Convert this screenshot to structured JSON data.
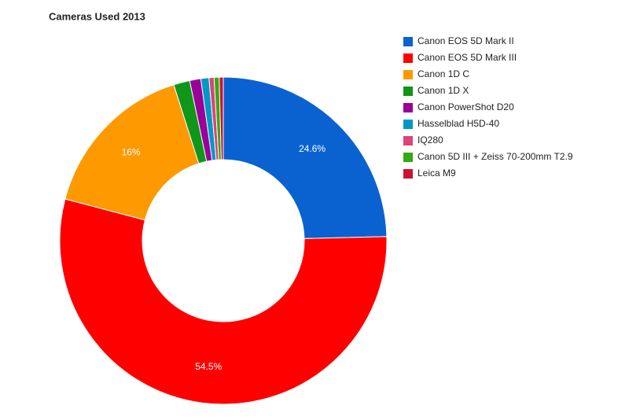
{
  "chart_data": {
    "type": "donut",
    "title": "Cameras Used 2013",
    "categories": [
      "Canon EOS 5D Mark II",
      "Canon EOS 5D Mark III",
      "Canon 1D C",
      "Canon 1D X",
      "Canon PowerShot D20",
      "Hasselblad H5D-40",
      "IQ280",
      "Canon 5D III + Zeiss 70-200mm T2.9",
      "Leica M9"
    ],
    "values": [
      24.6,
      54.5,
      16,
      1.6,
      1.1,
      0.8,
      0.5,
      0.5,
      0.4
    ],
    "value_labels": [
      "24.6%",
      "54.5%",
      "16%",
      null,
      null,
      null,
      null,
      null,
      null
    ],
    "colors": [
      "#0a62d0",
      "#ff0000",
      "#ff9900",
      "#109618",
      "#990099",
      "#0099c6",
      "#dd4477",
      "#33aa11",
      "#cc1133"
    ],
    "legend": "right"
  }
}
